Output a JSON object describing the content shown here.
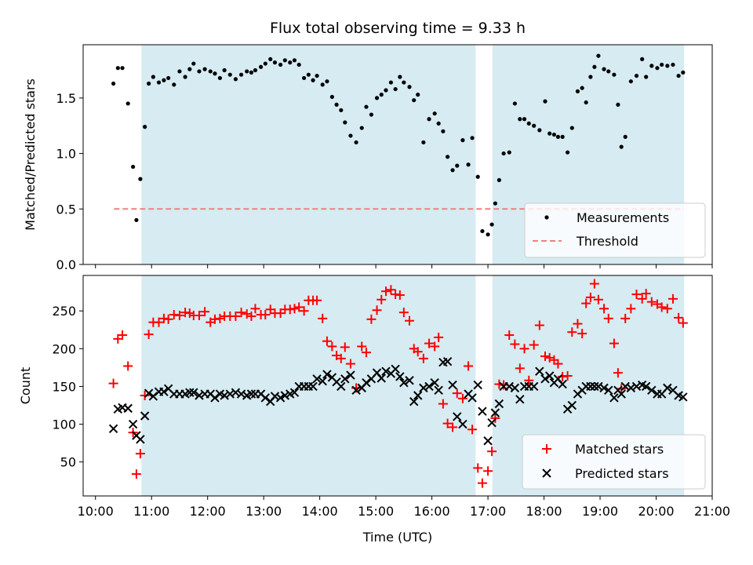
{
  "title": "Flux total observing time = 9.33 h",
  "colors": {
    "shade": "#add8e6",
    "matched": "#ff0000",
    "predicted": "#000000",
    "threshold": "#f08080",
    "measure": "#000000"
  },
  "x_axis": {
    "label": "Time (UTC)",
    "ticks": [
      "10:00",
      "11:00",
      "12:00",
      "13:00",
      "14:00",
      "15:00",
      "16:00",
      "17:00",
      "18:00",
      "19:00",
      "20:00",
      "21:00"
    ],
    "range_hours": [
      9.78,
      21.0
    ]
  },
  "chart_data": [
    {
      "type": "scatter",
      "ylabel": "Matched/Predicted stars",
      "ylim": [
        0,
        1.98
      ],
      "yticks": [
        "0.0",
        "0.5",
        "1.0",
        "1.5"
      ],
      "shaded_intervals": [
        [
          10.82,
          16.78
        ],
        [
          17.08,
          20.5
        ]
      ],
      "threshold": {
        "name": "Threshold",
        "value": 0.5,
        "x_range": [
          10.33,
          20.5
        ]
      },
      "legend": {
        "position": "bottom-right",
        "entries": [
          "Measurements",
          "Threshold"
        ]
      },
      "series": [
        {
          "name": "Measurements",
          "x": [
            10.32,
            10.4,
            10.48,
            10.58,
            10.67,
            10.73,
            10.8,
            10.88,
            10.95,
            11.03,
            11.13,
            11.22,
            11.3,
            11.4,
            11.5,
            11.6,
            11.68,
            11.75,
            11.85,
            11.95,
            12.05,
            12.13,
            12.22,
            12.3,
            12.4,
            12.5,
            12.6,
            12.7,
            12.78,
            12.85,
            12.95,
            13.03,
            13.12,
            13.2,
            13.3,
            13.38,
            13.47,
            13.55,
            13.63,
            13.72,
            13.8,
            13.88,
            13.95,
            14.05,
            14.13,
            14.22,
            14.3,
            14.38,
            14.45,
            14.55,
            14.65,
            14.75,
            14.83,
            14.92,
            15.02,
            15.1,
            15.18,
            15.27,
            15.35,
            15.43,
            15.5,
            15.6,
            15.68,
            15.75,
            15.85,
            15.95,
            16.05,
            16.12,
            16.2,
            16.28,
            16.37,
            16.45,
            16.55,
            16.65,
            16.72,
            16.82,
            16.9,
            17.0,
            17.07,
            17.13,
            17.2,
            17.28,
            17.38,
            17.48,
            17.57,
            17.65,
            17.73,
            17.82,
            17.92,
            18.02,
            18.1,
            18.18,
            18.25,
            18.33,
            18.42,
            18.5,
            18.6,
            18.68,
            18.75,
            18.83,
            18.9,
            18.97,
            19.07,
            19.15,
            19.25,
            19.32,
            19.38,
            19.45,
            19.55,
            19.65,
            19.75,
            19.82,
            19.92,
            20.02,
            20.1,
            20.2,
            20.3,
            20.4,
            20.48
          ],
          "values": [
            1.63,
            1.77,
            1.77,
            1.45,
            0.88,
            0.4,
            0.77,
            1.24,
            1.63,
            1.69,
            1.64,
            1.66,
            1.68,
            1.62,
            1.74,
            1.69,
            1.76,
            1.81,
            1.74,
            1.76,
            1.74,
            1.72,
            1.68,
            1.75,
            1.71,
            1.67,
            1.71,
            1.74,
            1.73,
            1.75,
            1.78,
            1.81,
            1.85,
            1.82,
            1.8,
            1.84,
            1.82,
            1.84,
            1.8,
            1.68,
            1.71,
            1.66,
            1.7,
            1.62,
            1.65,
            1.51,
            1.44,
            1.39,
            1.28,
            1.16,
            1.1,
            1.23,
            1.42,
            1.35,
            1.5,
            1.53,
            1.57,
            1.64,
            1.58,
            1.69,
            1.64,
            1.6,
            1.48,
            1.53,
            1.1,
            1.31,
            1.36,
            1.27,
            1.2,
            0.97,
            0.85,
            0.89,
            1.12,
            0.9,
            1.14,
            0.79,
            0.3,
            0.27,
            0.36,
            0.55,
            0.76,
            1.0,
            1.01,
            1.45,
            1.31,
            1.31,
            1.27,
            1.25,
            1.21,
            1.47,
            1.18,
            1.17,
            1.15,
            1.15,
            1.01,
            1.23,
            1.56,
            1.59,
            1.46,
            1.69,
            1.78,
            1.88,
            1.76,
            1.74,
            1.71,
            1.44,
            1.06,
            1.15,
            1.65,
            1.7,
            1.85,
            1.69,
            1.79,
            1.77,
            1.8,
            1.79,
            1.8,
            1.7,
            1.73
          ]
        }
      ]
    },
    {
      "type": "scatter",
      "ylabel": "Count",
      "ylim": [
        5,
        297
      ],
      "yticks": [
        "50",
        "100",
        "150",
        "200",
        "250"
      ],
      "shaded_intervals": [
        [
          10.82,
          16.78
        ],
        [
          17.08,
          20.5
        ]
      ],
      "legend": {
        "position": "bottom-right",
        "entries": [
          "Matched stars",
          "Predicted stars"
        ]
      },
      "series": [
        {
          "name": "Matched stars",
          "marker": "+",
          "x": [
            10.32,
            10.4,
            10.48,
            10.58,
            10.67,
            10.73,
            10.8,
            10.88,
            10.95,
            11.03,
            11.13,
            11.22,
            11.3,
            11.4,
            11.5,
            11.6,
            11.68,
            11.75,
            11.85,
            11.95,
            12.05,
            12.13,
            12.22,
            12.3,
            12.4,
            12.5,
            12.6,
            12.7,
            12.78,
            12.85,
            12.95,
            13.03,
            13.12,
            13.2,
            13.3,
            13.38,
            13.47,
            13.55,
            13.63,
            13.72,
            13.8,
            13.88,
            13.95,
            14.05,
            14.13,
            14.22,
            14.3,
            14.38,
            14.45,
            14.55,
            14.65,
            14.75,
            14.83,
            14.92,
            15.02,
            15.1,
            15.18,
            15.27,
            15.35,
            15.43,
            15.5,
            15.6,
            15.68,
            15.75,
            15.85,
            15.95,
            16.05,
            16.12,
            16.2,
            16.28,
            16.37,
            16.45,
            16.55,
            16.65,
            16.72,
            16.82,
            16.9,
            17.0,
            17.07,
            17.13,
            17.2,
            17.28,
            17.38,
            17.48,
            17.57,
            17.65,
            17.73,
            17.82,
            17.92,
            18.02,
            18.1,
            18.18,
            18.25,
            18.33,
            18.42,
            18.5,
            18.6,
            18.68,
            18.75,
            18.83,
            18.9,
            18.97,
            19.07,
            19.15,
            19.25,
            19.32,
            19.38,
            19.45,
            19.55,
            19.65,
            19.75,
            19.82,
            19.92,
            20.02,
            20.1,
            20.2,
            20.3,
            20.4,
            20.48
          ],
          "values": [
            154,
            213,
            218,
            177,
            89,
            34,
            61,
            138,
            219,
            235,
            235,
            240,
            239,
            245,
            244,
            248,
            247,
            244,
            244,
            249,
            235,
            239,
            240,
            243,
            243,
            243,
            248,
            246,
            243,
            253,
            245,
            245,
            252,
            247,
            247,
            252,
            252,
            253,
            255,
            250,
            264,
            264,
            264,
            240,
            210,
            203,
            191,
            187,
            202,
            180,
            148,
            203,
            195,
            239,
            251,
            265,
            276,
            278,
            272,
            271,
            248,
            237,
            200,
            196,
            187,
            207,
            203,
            215,
            127,
            101,
            96,
            141,
            134,
            177,
            93,
            42,
            22,
            38,
            64,
            108,
            153,
            152,
            218,
            206,
            174,
            200,
            158,
            205,
            231,
            190,
            188,
            185,
            180,
            163,
            164,
            222,
            233,
            220,
            260,
            268,
            286,
            265,
            253,
            240,
            207,
            168,
            147,
            240,
            253,
            272,
            266,
            273,
            262,
            259,
            255,
            253,
            266,
            241,
            234
          ]
        },
        {
          "name": "Predicted stars",
          "marker": "x",
          "x": [
            10.32,
            10.4,
            10.48,
            10.58,
            10.67,
            10.73,
            10.8,
            10.88,
            10.95,
            11.03,
            11.13,
            11.22,
            11.3,
            11.4,
            11.5,
            11.6,
            11.68,
            11.75,
            11.85,
            11.95,
            12.05,
            12.13,
            12.22,
            12.3,
            12.4,
            12.5,
            12.6,
            12.7,
            12.78,
            12.85,
            12.95,
            13.03,
            13.12,
            13.2,
            13.3,
            13.38,
            13.47,
            13.55,
            13.63,
            13.72,
            13.8,
            13.88,
            13.95,
            14.05,
            14.13,
            14.22,
            14.3,
            14.38,
            14.45,
            14.55,
            14.65,
            14.75,
            14.83,
            14.92,
            15.02,
            15.1,
            15.18,
            15.27,
            15.35,
            15.43,
            15.5,
            15.6,
            15.68,
            15.75,
            15.85,
            15.95,
            16.05,
            16.12,
            16.2,
            16.28,
            16.37,
            16.45,
            16.55,
            16.65,
            16.72,
            16.82,
            16.9,
            17.0,
            17.07,
            17.13,
            17.2,
            17.28,
            17.38,
            17.48,
            17.57,
            17.65,
            17.73,
            17.82,
            17.92,
            18.02,
            18.1,
            18.18,
            18.25,
            18.33,
            18.42,
            18.5,
            18.6,
            18.68,
            18.75,
            18.83,
            18.9,
            18.97,
            19.07,
            19.15,
            19.25,
            19.32,
            19.38,
            19.45,
            19.55,
            19.65,
            19.75,
            19.82,
            19.92,
            20.02,
            20.1,
            20.2,
            20.3,
            20.4,
            20.48
          ],
          "values": [
            94,
            120,
            122,
            121,
            100,
            85,
            80,
            111,
            141,
            137,
            143,
            143,
            147,
            140,
            140,
            140,
            142,
            142,
            138,
            140,
            140,
            135,
            140,
            138,
            140,
            142,
            140,
            138,
            140,
            140,
            140,
            135,
            130,
            137,
            135,
            138,
            140,
            142,
            150,
            150,
            150,
            150,
            160,
            157,
            166,
            162,
            156,
            150,
            160,
            165,
            145,
            148,
            155,
            160,
            168,
            161,
            170,
            167,
            173,
            163,
            155,
            158,
            130,
            138,
            148,
            150,
            155,
            145,
            182,
            183,
            152,
            110,
            100,
            140,
            135,
            152,
            117,
            78,
            102,
            115,
            127,
            150,
            150,
            148,
            133,
            150,
            150,
            150,
            170,
            160,
            164,
            155,
            160,
            153,
            120,
            125,
            140,
            145,
            150,
            150,
            150,
            150,
            148,
            145,
            135,
            145,
            140,
            150,
            148,
            150,
            152,
            150,
            145,
            140,
            140,
            148,
            145,
            138,
            136
          ]
        }
      ]
    }
  ]
}
